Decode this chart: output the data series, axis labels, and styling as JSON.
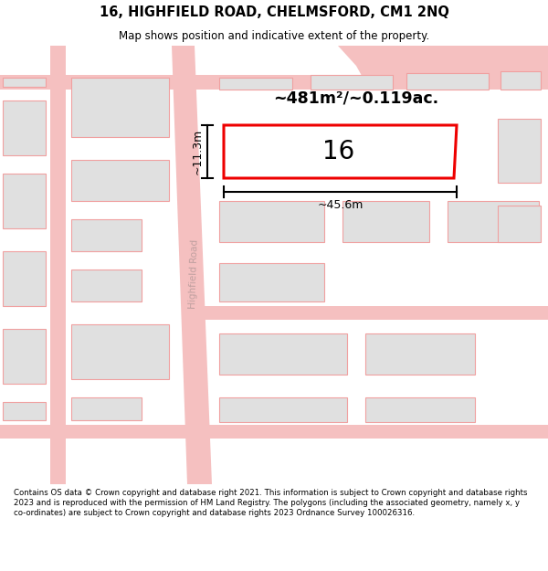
{
  "title": "16, HIGHFIELD ROAD, CHELMSFORD, CM1 2NQ",
  "subtitle": "Map shows position and indicative extent of the property.",
  "footer": "Contains OS data © Crown copyright and database right 2021. This information is subject to Crown copyright and database rights 2023 and is reproduced with the permission of HM Land Registry. The polygons (including the associated geometry, namely x, y co-ordinates) are subject to Crown copyright and database rights 2023 Ordnance Survey 100026316.",
  "area_text": "~481m²/~0.119ac.",
  "width_label": "~45.6m",
  "height_label": "~11.3m",
  "property_number": "16",
  "bg_color": "#ffffff",
  "map_bg": "#ffffff",
  "road_color": "#f5c0c0",
  "building_fill": "#e0e0e0",
  "building_edge": "#f0a0a0",
  "highlight_color": "#ee0000",
  "road_label_color": "#c0a0a0",
  "title_color": "#000000",
  "footer_color": "#000000"
}
